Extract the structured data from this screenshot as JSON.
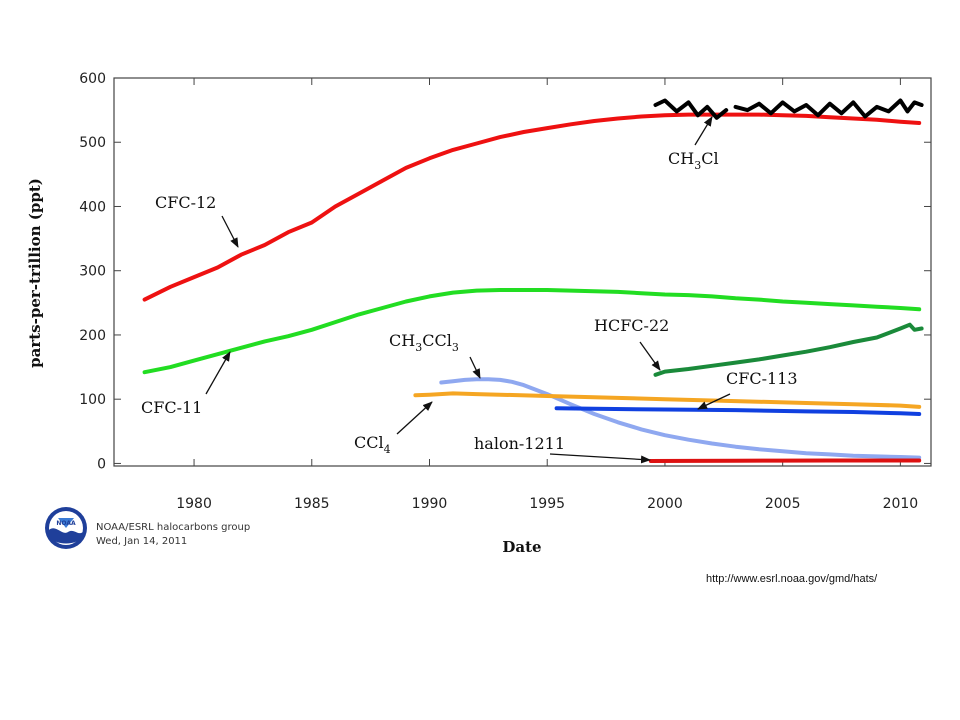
{
  "source_url": "http://www.esrl.noaa.gov/gmd/hats/",
  "credit": {
    "line1": "NOAA/ESRL halocarbons group",
    "line2": "Wed, Jan 14, 2011",
    "logo_text": "NOAA"
  },
  "colors": {
    "cfc12": "#ee1111",
    "cfc11": "#22dd22",
    "ch3cl": "#000000",
    "hcfc22": "#1a8a3a",
    "ch3ccl3": "#8fa8f0",
    "ccl4": "#f5a623",
    "cfc113": "#1040e0",
    "halon1211": "#dd1111"
  },
  "chart_data": {
    "type": "line",
    "xlabel": "Date",
    "ylabel": "parts-per-trillion (ppt)",
    "xlim": [
      1976.6,
      2011.3
    ],
    "ylim": [
      -4,
      600
    ],
    "xticks": [
      1980,
      1985,
      1990,
      1995,
      2000,
      2005,
      2010
    ],
    "yticks": [
      0,
      100,
      200,
      300,
      400,
      500,
      600
    ],
    "grid": false,
    "series": [
      {
        "name": "CFC-12",
        "color_key": "cfc12",
        "x": [
          1977.9,
          1979,
          1980,
          1981,
          1982,
          1983,
          1984,
          1985,
          1986,
          1987,
          1988,
          1989,
          1990,
          1991,
          1992,
          1993,
          1994,
          1995,
          1996,
          1997,
          1998,
          1999,
          2000,
          2001,
          2002,
          2003,
          2004,
          2005,
          2006,
          2007,
          2008,
          2009,
          2010,
          2010.8
        ],
        "y": [
          255,
          275,
          290,
          305,
          325,
          340,
          360,
          375,
          400,
          420,
          440,
          460,
          475,
          488,
          498,
          508,
          516,
          522,
          528,
          533,
          537,
          540,
          542,
          543,
          543,
          543,
          543,
          542,
          541,
          539,
          537,
          535,
          532,
          530
        ]
      },
      {
        "name": "CFC-11",
        "color_key": "cfc11",
        "x": [
          1977.9,
          1979,
          1980,
          1981,
          1982,
          1983,
          1984,
          1985,
          1986,
          1987,
          1988,
          1989,
          1990,
          1991,
          1992,
          1993,
          1994,
          1995,
          1996,
          1997,
          1998,
          1999,
          2000,
          2001,
          2002,
          2003,
          2004,
          2005,
          2006,
          2007,
          2008,
          2009,
          2010,
          2010.8
        ],
        "y": [
          142,
          150,
          160,
          170,
          180,
          190,
          198,
          208,
          220,
          232,
          242,
          252,
          260,
          266,
          269,
          270,
          270,
          270,
          269,
          268,
          267,
          265,
          263,
          262,
          260,
          257,
          255,
          252,
          250,
          248,
          246,
          244,
          242,
          240
        ]
      },
      {
        "name": "CH3Cl",
        "color_key": "ch3cl",
        "segments": [
          {
            "x": [
              1999.6,
              2000,
              2000.5,
              2001,
              2001.4,
              2001.8,
              2002.2,
              2002.6
            ],
            "y": [
              558,
              565,
              548,
              562,
              542,
              555,
              538,
              550
            ]
          },
          {
            "x": [
              2003.0,
              2003.5,
              2004,
              2004.5,
              2005,
              2005.5,
              2006,
              2006.5,
              2007,
              2007.5,
              2008,
              2008.5,
              2009,
              2009.5,
              2010,
              2010.3,
              2010.6,
              2010.9
            ],
            "y": [
              555,
              550,
              560,
              545,
              562,
              548,
              558,
              542,
              560,
              545,
              562,
              540,
              555,
              548,
              565,
              548,
              562,
              558
            ]
          }
        ]
      },
      {
        "name": "HCFC-22",
        "color_key": "hcfc22",
        "x": [
          1999.6,
          2000,
          2001,
          2002,
          2003,
          2004,
          2005,
          2006,
          2007,
          2008,
          2009,
          2010,
          2010.4,
          2010.6,
          2010.9
        ],
        "y": [
          138,
          143,
          147,
          152,
          157,
          162,
          168,
          174,
          181,
          189,
          196,
          210,
          216,
          208,
          210
        ]
      },
      {
        "name": "CH3CCl3",
        "color_key": "ch3ccl3",
        "x": [
          1990.5,
          1991,
          1991.5,
          1992,
          1992.5,
          1993,
          1993.5,
          1994,
          1995,
          1996,
          1997,
          1998,
          1999,
          2000,
          2001,
          2002,
          2003,
          2004,
          2005,
          2006,
          2007,
          2008,
          2009,
          2010,
          2010.8
        ],
        "y": [
          126,
          128,
          130,
          131,
          131,
          130,
          127,
          122,
          108,
          92,
          77,
          64,
          53,
          44,
          37,
          31,
          26,
          22,
          19,
          16,
          14,
          12,
          11,
          10,
          9
        ]
      },
      {
        "name": "CCl4",
        "color_key": "ccl4",
        "x": [
          1989.4,
          1990,
          1991,
          1992,
          1993,
          1995,
          1997,
          2000,
          2003,
          2006,
          2008,
          2010,
          2010.8
        ],
        "y": [
          106,
          107,
          109,
          108,
          107,
          105,
          103,
          100,
          97,
          94,
          92,
          90,
          88
        ]
      },
      {
        "name": "CFC-113",
        "color_key": "cfc113",
        "x": [
          1995.4,
          1997,
          2000,
          2003,
          2006,
          2008,
          2010,
          2010.8
        ],
        "y": [
          86,
          85,
          84,
          83,
          81,
          80,
          78,
          77
        ]
      },
      {
        "name": "halon-1211",
        "color_key": "halon1211",
        "x": [
          1999.4,
          2001,
          2003,
          2005,
          2007,
          2009,
          2010.8
        ],
        "y": [
          3.8,
          4.0,
          4.2,
          4.4,
          4.5,
          4.6,
          4.6
        ]
      }
    ],
    "annotations": [
      {
        "label": "CFC-12",
        "main": "CFC-12",
        "sub": "",
        "tail": ""
      },
      {
        "label": "CFC-11",
        "main": "CFC-11",
        "sub": "",
        "tail": ""
      },
      {
        "label": "CH3Cl",
        "main": "CH",
        "sub": "3",
        "tail": "Cl"
      },
      {
        "label": "HCFC-22",
        "main": "HCFC-22",
        "sub": "",
        "tail": ""
      },
      {
        "label": "CH3CCl3",
        "main": "CH",
        "sub": "3",
        "tail": "CCl",
        "sub2": "3"
      },
      {
        "label": "CFC-113",
        "main": "CFC-113",
        "sub": "",
        "tail": ""
      },
      {
        "label": "CCl4",
        "main": "CCl",
        "sub": "4",
        "tail": ""
      },
      {
        "label": "halon-1211",
        "main": "halon-1211",
        "sub": "",
        "tail": ""
      }
    ]
  }
}
